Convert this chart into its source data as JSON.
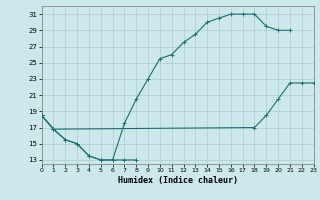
{
  "title": "",
  "xlabel": "Humidex (Indice chaleur)",
  "background_color": "#cce8ea",
  "grid_color": "#aacccc",
  "line_color": "#1a7070",
  "xlim": [
    0,
    23
  ],
  "ylim": [
    12.5,
    32
  ],
  "xticks": [
    0,
    1,
    2,
    3,
    4,
    5,
    6,
    7,
    8,
    9,
    10,
    11,
    12,
    13,
    14,
    15,
    16,
    17,
    18,
    19,
    20,
    21,
    22,
    23
  ],
  "yticks": [
    13,
    15,
    17,
    19,
    21,
    23,
    25,
    27,
    29,
    31
  ],
  "line1_x": [
    0,
    1,
    2,
    3,
    4,
    5,
    6,
    7,
    8
  ],
  "line1_y": [
    18.5,
    16.8,
    15.5,
    15.0,
    13.5,
    13.0,
    13.0,
    13.0,
    13.0
  ],
  "line2_x": [
    0,
    1,
    2,
    3,
    4,
    5,
    6,
    7,
    8,
    9,
    10,
    11,
    12,
    13,
    14,
    15,
    16,
    17,
    18,
    19,
    20,
    21
  ],
  "line2_y": [
    18.5,
    16.8,
    15.5,
    15.0,
    13.5,
    13.0,
    13.0,
    17.5,
    20.5,
    23.0,
    25.5,
    26.0,
    27.5,
    28.5,
    30.0,
    30.5,
    31.0,
    31.0,
    31.0,
    29.5,
    29.0,
    29.0
  ],
  "line3_x": [
    0,
    1,
    18,
    19,
    20,
    21,
    22,
    23
  ],
  "line3_y": [
    18.5,
    16.8,
    17.0,
    18.5,
    20.5,
    22.5,
    22.5,
    22.5
  ]
}
